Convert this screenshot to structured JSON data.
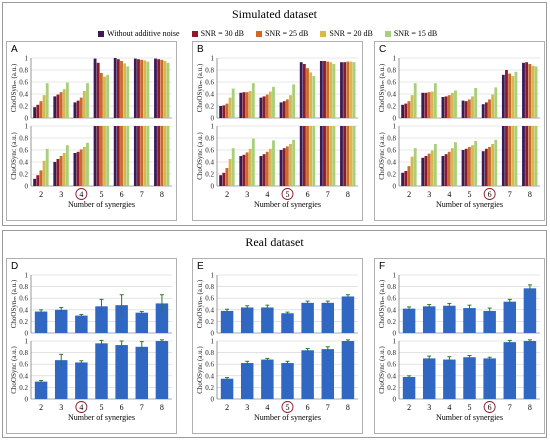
{
  "figure": {
    "sim_title": "Simulated dataset",
    "real_title": "Real dataset",
    "panel_labels": [
      "A",
      "B",
      "C",
      "D",
      "E",
      "F"
    ],
    "xlabel": "Number of synergies",
    "ylabel_top": "ChoOSynₘ (a.u.)",
    "ylabel_bottom": "ChoOSynᴄ (a.u.)",
    "yticks": [
      "0",
      "0.2",
      "0.4",
      "0.6",
      "0.8",
      "1"
    ],
    "legend": [
      "Without additive noise",
      "SNR = 30 dB",
      "SNR = 25 dB",
      "SNR = 20 dB",
      "SNR = 15 dB"
    ]
  },
  "colors": {
    "noise_levels": [
      "#3b1a55",
      "#8b1a2b",
      "#c86a2a",
      "#d8b84a",
      "#a9cf7a"
    ],
    "real_bar": "#2f67c3",
    "circle": "#8b1a2b"
  },
  "chart_data": [
    {
      "type": "bar",
      "panel": "A",
      "categories": [
        "2",
        "3",
        "4",
        "5",
        "6",
        "7",
        "8"
      ],
      "circled": "4",
      "ylim": [
        0,
        1
      ],
      "top_series": [
        {
          "name": "Without additive noise",
          "values": [
            0.18,
            0.36,
            0.26,
            0.99,
            1.0,
            0.99,
            0.99
          ]
        },
        {
          "name": "SNR = 30 dB",
          "values": [
            0.22,
            0.39,
            0.29,
            0.92,
            0.98,
            0.98,
            0.98
          ]
        },
        {
          "name": "SNR = 25 dB",
          "values": [
            0.28,
            0.43,
            0.34,
            0.75,
            0.95,
            0.97,
            0.97
          ]
        },
        {
          "name": "SNR = 20 dB",
          "values": [
            0.38,
            0.48,
            0.45,
            0.69,
            0.91,
            0.96,
            0.95
          ]
        },
        {
          "name": "SNR = 15 dB",
          "values": [
            0.58,
            0.59,
            0.58,
            0.72,
            0.86,
            0.94,
            0.92
          ]
        }
      ],
      "bottom_series": [
        {
          "name": "Without additive noise",
          "values": [
            0.12,
            0.4,
            0.55,
            1.0,
            1.0,
            1.0,
            1.0
          ]
        },
        {
          "name": "SNR = 30 dB",
          "values": [
            0.18,
            0.45,
            0.57,
            1.0,
            1.0,
            1.0,
            1.0
          ]
        },
        {
          "name": "SNR = 25 dB",
          "values": [
            0.26,
            0.5,
            0.61,
            1.0,
            1.0,
            1.0,
            1.0
          ]
        },
        {
          "name": "SNR = 20 dB",
          "values": [
            0.42,
            0.55,
            0.65,
            1.0,
            1.0,
            1.0,
            1.0
          ]
        },
        {
          "name": "SNR = 15 dB",
          "values": [
            0.62,
            0.68,
            0.72,
            1.0,
            1.0,
            1.0,
            1.0
          ]
        }
      ]
    },
    {
      "type": "bar",
      "panel": "B",
      "categories": [
        "2",
        "3",
        "4",
        "5",
        "6",
        "7",
        "8"
      ],
      "circled": "5",
      "ylim": [
        0,
        1
      ],
      "top_series": [
        {
          "name": "Without additive noise",
          "values": [
            0.2,
            0.42,
            0.34,
            0.26,
            0.93,
            0.95,
            0.93
          ]
        },
        {
          "name": "SNR = 30 dB",
          "values": [
            0.21,
            0.43,
            0.36,
            0.28,
            0.9,
            0.95,
            0.93
          ]
        },
        {
          "name": "SNR = 25 dB",
          "values": [
            0.24,
            0.43,
            0.39,
            0.31,
            0.83,
            0.94,
            0.94
          ]
        },
        {
          "name": "SNR = 20 dB",
          "values": [
            0.34,
            0.45,
            0.44,
            0.38,
            0.76,
            0.93,
            0.94
          ]
        },
        {
          "name": "SNR = 15 dB",
          "values": [
            0.49,
            0.58,
            0.52,
            0.56,
            0.7,
            0.9,
            0.93
          ]
        }
      ],
      "bottom_series": [
        {
          "name": "Without additive noise",
          "values": [
            0.18,
            0.5,
            0.5,
            0.6,
            1.0,
            1.0,
            1.0
          ]
        },
        {
          "name": "SNR = 30 dB",
          "values": [
            0.22,
            0.52,
            0.53,
            0.63,
            1.0,
            1.0,
            1.0
          ]
        },
        {
          "name": "SNR = 25 dB",
          "values": [
            0.3,
            0.56,
            0.57,
            0.66,
            1.0,
            1.0,
            1.0
          ]
        },
        {
          "name": "SNR = 20 dB",
          "values": [
            0.45,
            0.62,
            0.62,
            0.7,
            1.0,
            1.0,
            1.0
          ]
        },
        {
          "name": "SNR = 15 dB",
          "values": [
            0.63,
            0.79,
            0.76,
            0.77,
            1.0,
            1.0,
            1.0
          ]
        }
      ]
    },
    {
      "type": "bar",
      "panel": "C",
      "categories": [
        "2",
        "3",
        "4",
        "5",
        "6",
        "7",
        "8"
      ],
      "circled": "6",
      "ylim": [
        0,
        1
      ],
      "top_series": [
        {
          "name": "Without additive noise",
          "values": [
            0.22,
            0.42,
            0.35,
            0.29,
            0.23,
            0.72,
            0.92
          ]
        },
        {
          "name": "SNR = 30 dB",
          "values": [
            0.24,
            0.42,
            0.36,
            0.28,
            0.26,
            0.8,
            0.93
          ]
        },
        {
          "name": "SNR = 25 dB",
          "values": [
            0.28,
            0.43,
            0.38,
            0.31,
            0.31,
            0.74,
            0.9
          ]
        },
        {
          "name": "SNR = 20 dB",
          "values": [
            0.38,
            0.44,
            0.42,
            0.36,
            0.39,
            0.7,
            0.87
          ]
        },
        {
          "name": "SNR = 15 dB",
          "values": [
            0.58,
            0.58,
            0.46,
            0.5,
            0.51,
            0.77,
            0.86
          ]
        }
      ],
      "bottom_series": [
        {
          "name": "Without additive noise",
          "values": [
            0.22,
            0.47,
            0.5,
            0.6,
            0.58,
            1.0,
            1.0
          ]
        },
        {
          "name": "SNR = 30 dB",
          "values": [
            0.25,
            0.5,
            0.53,
            0.62,
            0.62,
            1.0,
            1.0
          ]
        },
        {
          "name": "SNR = 25 dB",
          "values": [
            0.33,
            0.54,
            0.57,
            0.65,
            0.65,
            1.0,
            1.0
          ]
        },
        {
          "name": "SNR = 20 dB",
          "values": [
            0.49,
            0.59,
            0.63,
            0.68,
            0.7,
            1.0,
            1.0
          ]
        },
        {
          "name": "SNR = 15 dB",
          "values": [
            0.63,
            0.7,
            0.73,
            0.75,
            0.77,
            1.0,
            1.0
          ]
        }
      ]
    },
    {
      "type": "bar",
      "panel": "D",
      "categories": [
        "2",
        "3",
        "4",
        "5",
        "6",
        "7",
        "8"
      ],
      "circled": "4",
      "ylim": [
        0,
        1
      ],
      "top_values": [
        0.37,
        0.4,
        0.3,
        0.46,
        0.48,
        0.35,
        0.51
      ],
      "top_errors": [
        0.03,
        0.04,
        0.02,
        0.12,
        0.18,
        0.02,
        0.15
      ],
      "bottom_values": [
        0.3,
        0.67,
        0.63,
        0.96,
        0.93,
        0.9,
        1.0
      ],
      "bottom_errors": [
        0.02,
        0.1,
        0.03,
        0.05,
        0.07,
        0.09,
        0.02
      ]
    },
    {
      "type": "bar",
      "panel": "E",
      "categories": [
        "2",
        "3",
        "4",
        "5",
        "6",
        "7",
        "8"
      ],
      "circled": "5",
      "ylim": [
        0,
        1
      ],
      "top_values": [
        0.38,
        0.44,
        0.44,
        0.34,
        0.52,
        0.52,
        0.63
      ],
      "top_errors": [
        0.03,
        0.03,
        0.04,
        0.02,
        0.03,
        0.03,
        0.03
      ],
      "bottom_values": [
        0.35,
        0.62,
        0.68,
        0.62,
        0.84,
        0.86,
        1.0
      ],
      "bottom_errors": [
        0.02,
        0.03,
        0.02,
        0.03,
        0.03,
        0.04,
        0.02
      ]
    },
    {
      "type": "bar",
      "panel": "F",
      "categories": [
        "2",
        "3",
        "4",
        "5",
        "6",
        "7",
        "8"
      ],
      "circled": "6",
      "ylim": [
        0,
        1
      ],
      "top_values": [
        0.42,
        0.46,
        0.47,
        0.43,
        0.38,
        0.54,
        0.77
      ],
      "top_errors": [
        0.03,
        0.03,
        0.04,
        0.05,
        0.05,
        0.04,
        0.06
      ],
      "bottom_values": [
        0.38,
        0.7,
        0.68,
        0.72,
        0.7,
        0.98,
        1.0
      ],
      "bottom_errors": [
        0.02,
        0.04,
        0.05,
        0.03,
        0.02,
        0.03,
        0.02
      ]
    }
  ]
}
